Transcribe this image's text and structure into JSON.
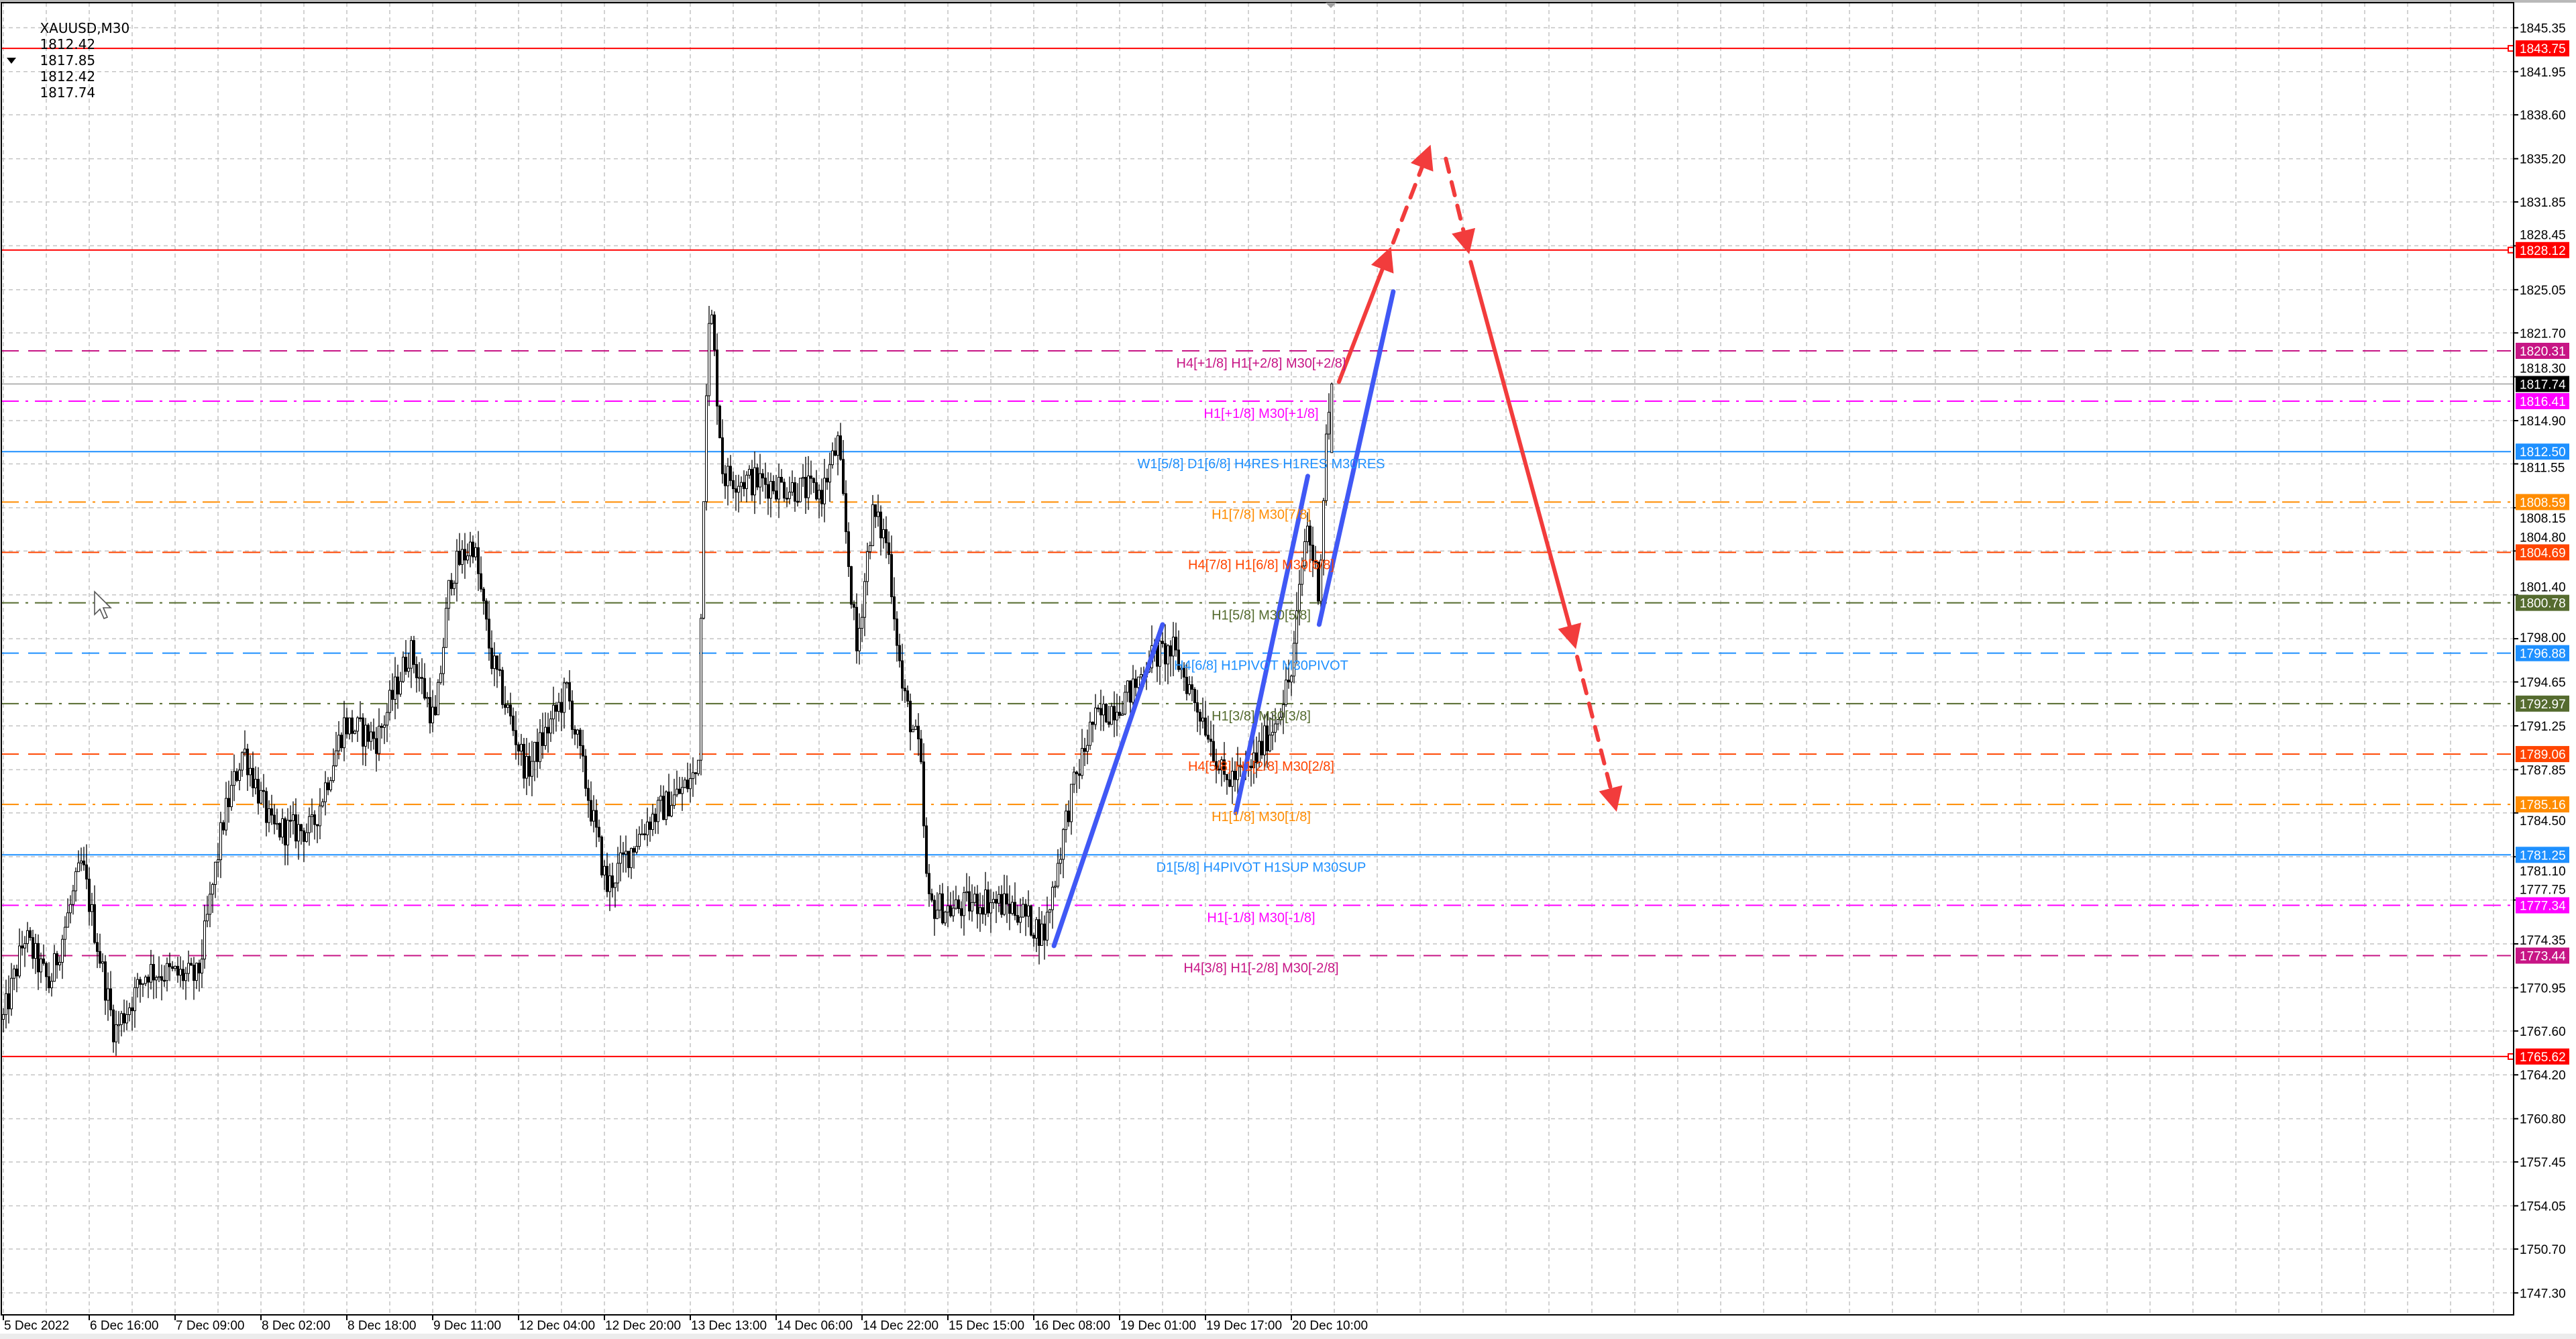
{
  "header": {
    "symbol_timeframe": "XAUUSD,M30",
    "open": "1812.42",
    "high": "1817.85",
    "low": "1812.42",
    "close": "1817.74",
    "menu_icon": "triangle-down-icon"
  },
  "colors": {
    "background": "#ffffff",
    "grid": "#c4c4c4",
    "bull_body": "#ffffff",
    "bear_body": "#000000",
    "trend_line": "#4058f5",
    "forecast_arrow": "#f23c3c"
  },
  "price_axis": {
    "range": [
      1745.6,
      1847.5
    ],
    "ticks": [
      "1845.35",
      "1841.95",
      "1838.60",
      "1835.20",
      "1831.85",
      "1828.45",
      "1825.05",
      "1821.70",
      "1818.30",
      "1814.90",
      "1811.55",
      "1808.15",
      "1804.80",
      "1801.40",
      "1798.00",
      "1794.65",
      "1791.25",
      "1787.85",
      "1784.50",
      "1781.10",
      "1777.75",
      "1774.35",
      "1770.95",
      "1767.60",
      "1764.20",
      "1760.80",
      "1757.45",
      "1754.05",
      "1750.70",
      "1747.30"
    ]
  },
  "time_axis": {
    "labels": [
      "5 Dec 2022",
      "6 Dec 16:00",
      "7 Dec 09:00",
      "8 Dec 02:00",
      "8 Dec 18:00",
      "9 Dec 11:00",
      "12 Dec 04:00",
      "12 Dec 20:00",
      "13 Dec 13:00",
      "14 Dec 06:00",
      "14 Dec 22:00",
      "15 Dec 15:00",
      "16 Dec 08:00",
      "19 Dec 01:00",
      "19 Dec 17:00",
      "20 Dec 10:00"
    ]
  },
  "current_price": {
    "value": "1817.74",
    "color": "#000000",
    "line_color": "#b4b4b4"
  },
  "price_levels": [
    {
      "price": "1843.75",
      "label": "",
      "color": "#ff0000",
      "style": "solid"
    },
    {
      "price": "1828.12",
      "label": "",
      "color": "#ff0000",
      "style": "solid"
    },
    {
      "price": "1820.31",
      "label": "H4[+1/8] H1[+2/8] M30[+2/8]",
      "color": "#c71585",
      "style": "dash"
    },
    {
      "price": "1816.41",
      "label": "H1[+1/8] M30[+1/8]",
      "color": "#ff00ff",
      "style": "dashdot"
    },
    {
      "price": "1812.50",
      "label": "W1[5/8] D1[6/8] H4RES H1RES M30RES",
      "color": "#1e90ff",
      "style": "solid"
    },
    {
      "price": "1808.59",
      "label": "H1[7/8] M30[7/8]",
      "color": "#ff8c00",
      "style": "dashdot"
    },
    {
      "price": "1804.69",
      "label": "H4[7/8] H1[6/8] M30[6/8]",
      "color": "#ff4500",
      "style": "dash"
    },
    {
      "price": "1800.78",
      "label": "H1[5/8] M30[5/8]",
      "color": "#556b2f",
      "style": "dashdot"
    },
    {
      "price": "1796.88",
      "label": "H4[6/8] H1PIVOT M30PIVOT",
      "color": "#1e90ff",
      "style": "dash"
    },
    {
      "price": "1792.97",
      "label": "H1[3/8] M30[3/8]",
      "color": "#556b2f",
      "style": "dashdot"
    },
    {
      "price": "1789.06",
      "label": "H4[5/8] H1[2/8] M30[2/8]",
      "color": "#ff4500",
      "style": "dash"
    },
    {
      "price": "1785.16",
      "label": "H1[1/8] M30[1/8]",
      "color": "#ff8c00",
      "style": "dashdot"
    },
    {
      "price": "1781.25",
      "label": "D1[5/8] H4PIVOT H1SUP M30SUP",
      "color": "#1e90ff",
      "style": "solid"
    },
    {
      "price": "1777.34",
      "label": "H1[-1/8] M30[-1/8]",
      "color": "#ff00ff",
      "style": "dashdot"
    },
    {
      "price": "1773.44",
      "label": "H4[3/8] H1[-2/8] M30[-2/8]",
      "color": "#c71585",
      "style": "dash"
    },
    {
      "price": "1765.62",
      "label": "",
      "color": "#ff0000",
      "style": "solid"
    }
  ],
  "drawings": [
    {
      "kind": "trend-line",
      "color": "#4058f5",
      "style": "solid",
      "from": [
        "16 Dec 12:00",
        1774.2
      ],
      "to": [
        "19 Dec 09:00",
        1799.1
      ]
    },
    {
      "kind": "trend-line",
      "color": "#4058f5",
      "style": "solid",
      "from": [
        "19 Dec 23:00",
        1784.5
      ],
      "to": [
        "20 Dec 13:15",
        1810.6
      ]
    },
    {
      "kind": "trend-line",
      "color": "#4058f5",
      "style": "solid",
      "from": [
        "20 Dec 15:30",
        1799.1
      ],
      "to": [
        "21 Dec 06:10",
        1824.9
      ]
    },
    {
      "kind": "arrow",
      "color": "#f23c3c",
      "style": "solid",
      "from": [
        "20 Dec 19:25",
        1817.9
      ],
      "to": [
        "21 Dec 05:10",
        1827.8
      ]
    },
    {
      "kind": "arrow",
      "color": "#f23c3c",
      "style": "dashed",
      "from": [
        "21 Dec 06:10",
        1828.7
      ],
      "to": [
        "21 Dec 13:00",
        1835.7
      ]
    },
    {
      "kind": "arrow",
      "color": "#f23c3c",
      "style": "dashed",
      "from": [
        "21 Dec 16:35",
        1835.2
      ],
      "to": [
        "21 Dec 20:50",
        1828.4
      ]
    },
    {
      "kind": "arrow",
      "color": "#f23c3c",
      "style": "solid",
      "from": [
        "21 Dec 21:30",
        1827.2
      ],
      "to": [
        "22 Dec 17:55",
        1797.8
      ]
    },
    {
      "kind": "arrow",
      "color": "#f23c3c",
      "style": "dashed",
      "from": [
        "22 Dec 18:35",
        1796.6
      ],
      "to": [
        "23 Dec 02:00",
        1785.2
      ]
    }
  ],
  "chart_data": {
    "type": "candlestick",
    "symbol": "XAUUSD",
    "timeframe": "M30",
    "grid": true,
    "last_candle": {
      "open": 1812.42,
      "high": 1817.85,
      "low": 1812.42,
      "close": 1817.74
    },
    "approx_price_path": [
      [
        "5 Dec 00:00",
        1768.5
      ],
      [
        "5 Dec 10:00",
        1774.9
      ],
      [
        "5 Dec 21:30",
        1771.1
      ],
      [
        "6 Dec 12:30",
        1780.6
      ],
      [
        "6 Dec 21:00",
        1767.5
      ],
      [
        "7 Dec 03:30",
        1772.3
      ],
      [
        "7 Dec 13:30",
        1771.7
      ],
      [
        "7 Dec 18:30",
        1783.8
      ],
      [
        "7 Dec 22:30",
        1789.5
      ],
      [
        "8 Dec 04:00",
        1783.2
      ],
      [
        "8 Dec 11:30",
        1783.2
      ],
      [
        "8 Dec 17:30",
        1791.4
      ],
      [
        "9 Dec 00:00",
        1790.2
      ],
      [
        "9 Dec 06:30",
        1797.2
      ],
      [
        "9 Dec 11:30",
        1791.4
      ],
      [
        "9 Dec 14:30",
        1802.9
      ],
      [
        "9 Dec 19:00",
        1805.5
      ],
      [
        "9 Dec 22:30",
        1796.6
      ],
      [
        "12 Dec 05:30",
        1787.7
      ],
      [
        "12 Dec 13:00",
        1794.0
      ],
      [
        "12 Dec 20:30",
        1778.7
      ],
      [
        "13 Dec 04:30",
        1783.8
      ],
      [
        "13 Dec 11:30",
        1786.3
      ],
      [
        "13 Dec 14:30",
        1787.7
      ],
      [
        "13 Dec 16:00",
        1816.4
      ],
      [
        "13 Dec 17:00",
        1824.0
      ],
      [
        "13 Dec 19:30",
        1810.6
      ],
      [
        "14 Dec 05:00",
        1810.0
      ],
      [
        "14 Dec 14:30",
        1809.3
      ],
      [
        "14 Dec 17:30",
        1813.1
      ],
      [
        "14 Dec 21:00",
        1797.0
      ],
      [
        "15 Dec 00:00",
        1807.7
      ],
      [
        "15 Dec 03:00",
        1805.5
      ],
      [
        "15 Dec 06:00",
        1794.0
      ],
      [
        "15 Dec 09:30",
        1788.9
      ],
      [
        "15 Dec 11:00",
        1777.4
      ],
      [
        "15 Dec 16:00",
        1777.0
      ],
      [
        "15 Dec 22:30",
        1777.8
      ],
      [
        "16 Dec 05:00",
        1777.0
      ],
      [
        "16 Dec 10:00",
        1775.0
      ],
      [
        "16 Dec 15:00",
        1785.2
      ],
      [
        "16 Dec 19:30",
        1791.4
      ],
      [
        "19 Dec 03:30",
        1794.0
      ],
      [
        "19 Dec 06:30",
        1796.6
      ],
      [
        "19 Dec 11:00",
        1797.0
      ],
      [
        "19 Dec 17:30",
        1791.0
      ],
      [
        "19 Dec 20:30",
        1787.0
      ],
      [
        "20 Dec 01:30",
        1787.7
      ],
      [
        "20 Dec 06:30",
        1791.4
      ],
      [
        "20 Dec 10:00",
        1795.2
      ],
      [
        "20 Dec 13:00",
        1807.0
      ],
      [
        "20 Dec 15:30",
        1801.7
      ],
      [
        "20 Dec 17:00",
        1814.4
      ],
      [
        "20 Dec 18:00",
        1817.74
      ]
    ]
  },
  "cursor": {
    "icon": "mouse-pointer-icon"
  },
  "shift_marker": {
    "icon": "triangle-down-icon"
  }
}
